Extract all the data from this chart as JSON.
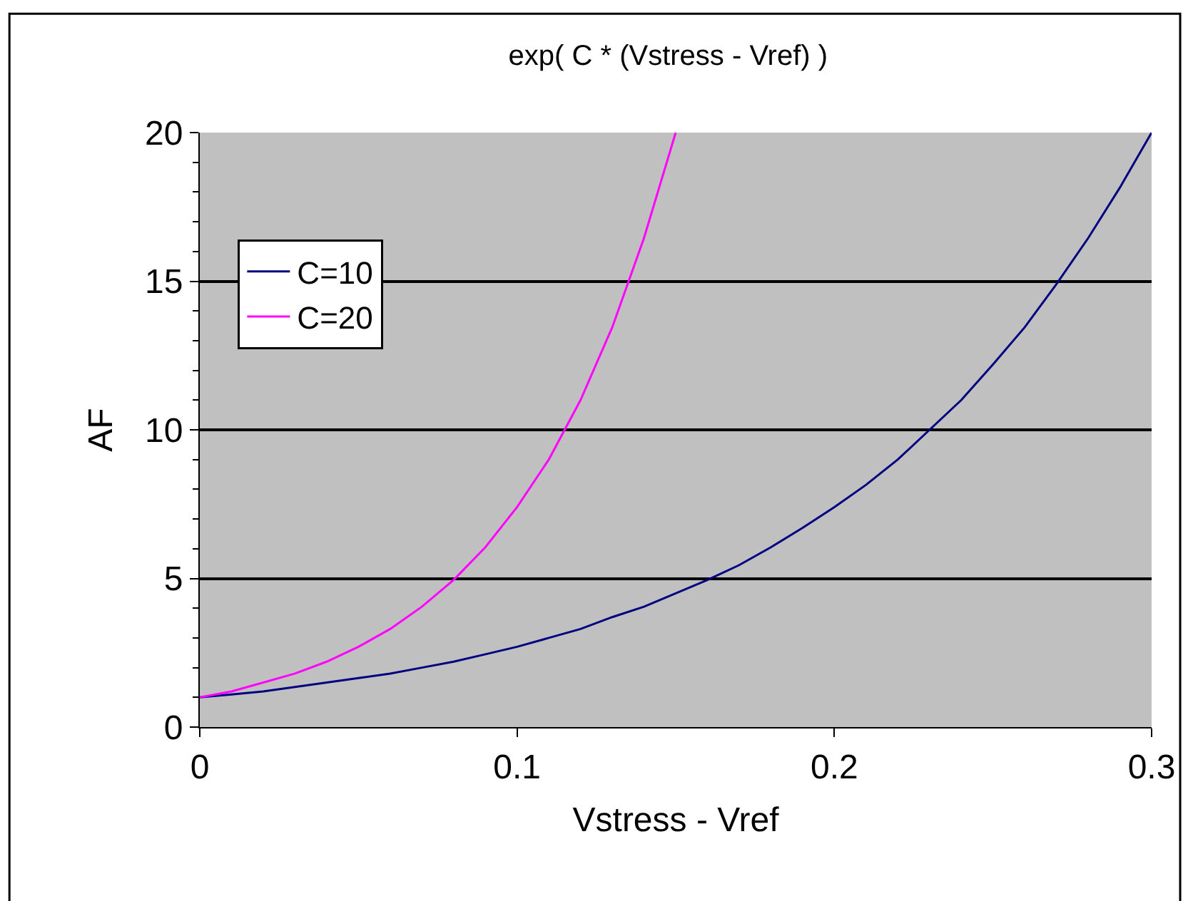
{
  "chart_data": {
    "type": "line",
    "title": "exp( C * (Vstress - Vref) )",
    "xlabel": "Vstress - Vref",
    "ylabel": "AF",
    "xlim": [
      0,
      0.3
    ],
    "xticks": [
      0,
      0.1,
      0.2,
      0.3
    ],
    "ylim": [
      0,
      20
    ],
    "yticks": [
      0,
      5,
      10,
      15,
      20
    ],
    "grid": "y",
    "legend": "top left",
    "marker": "none",
    "line_style": "solid",
    "series": [
      {
        "name": "C=10",
        "color": "#000080",
        "x": [
          0,
          0.01,
          0.02,
          0.03,
          0.04,
          0.05,
          0.06,
          0.07,
          0.08,
          0.09,
          0.1,
          0.11,
          0.12,
          0.13,
          0.14,
          0.15,
          0.16,
          0.17,
          0.18,
          0.19,
          0.2,
          0.21,
          0.22,
          0.23,
          0.24,
          0.25,
          0.26,
          0.27,
          0.28,
          0.29,
          0.3
        ],
        "values": [
          1.0,
          1.1,
          1.2,
          1.35,
          1.5,
          1.65,
          1.8,
          2.0,
          2.2,
          2.45,
          2.7,
          3.0,
          3.3,
          3.7,
          4.05,
          4.5,
          4.95,
          5.45,
          6.05,
          6.7,
          7.4,
          8.15,
          9.0,
          10.0,
          11.0,
          12.2,
          13.45,
          14.9,
          16.45,
          18.15,
          20.0
        ]
      },
      {
        "name": "C=20",
        "color": "#ff00ff",
        "x": [
          0,
          0.01,
          0.02,
          0.03,
          0.04,
          0.05,
          0.06,
          0.07,
          0.08,
          0.09,
          0.1,
          0.11,
          0.12,
          0.13,
          0.14,
          0.15
        ],
        "values": [
          1.0,
          1.2,
          1.5,
          1.8,
          2.2,
          2.7,
          3.3,
          4.05,
          4.95,
          6.05,
          7.4,
          9.0,
          11.0,
          13.45,
          16.45,
          20.0
        ]
      }
    ]
  }
}
